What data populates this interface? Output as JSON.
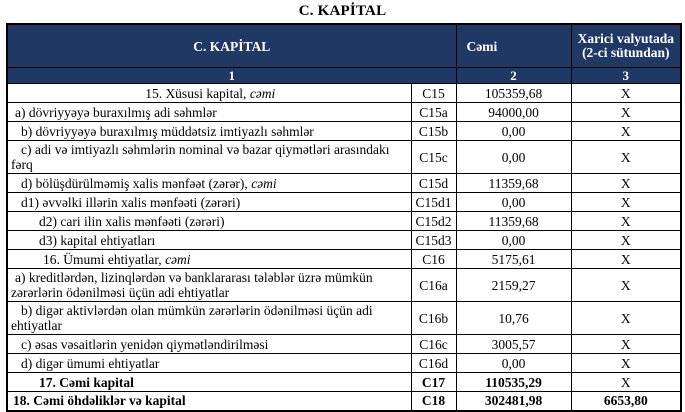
{
  "title": "C. KAPİTAL",
  "colors": {
    "header_bg": "#1f3864",
    "header_text": "#ffffff",
    "border": "#000000"
  },
  "table": {
    "header": {
      "section": "C. KAPİTAL",
      "total": "Cəmi",
      "foreign": "Xarici valyutada (2-ci sütundan)",
      "index": [
        "1",
        "2",
        "3"
      ]
    },
    "rows": [
      {
        "label": "15. Xüsusi kapital, ",
        "label_italic": "cəmi",
        "code": "C15",
        "total": "105359,68",
        "foreign": "X",
        "align": "center",
        "indent": 0,
        "bold": false,
        "foreign_bold": false
      },
      {
        "label": "a) dövriyyəyə buraxılmış adi səhmlər",
        "code": "C15a",
        "total": "94000,00",
        "foreign": "X",
        "indent": 1,
        "bold": false,
        "foreign_bold": false
      },
      {
        "label": "b) dövriyyəyə buraxılmış müddətsiz imtiyazlı səhmlər",
        "code": "C15b",
        "total": "0,00",
        "foreign": "X",
        "indent": 2,
        "bold": false,
        "foreign_bold": false
      },
      {
        "label": "c) adi və imtiyazlı səhmlərin nominal və bazar qiymətləri arasındakı fərq",
        "code": "C15c",
        "total": "0,00",
        "foreign": "X",
        "indent": 2,
        "bold": false,
        "foreign_bold": false
      },
      {
        "label": "d) bölüşdürülməmiş xalis mənfəət (zərər), ",
        "label_italic": "cəmi",
        "code": "C15d",
        "total": "11359,68",
        "foreign": "X",
        "indent": 2,
        "bold": false,
        "foreign_bold": false
      },
      {
        "label": "d1) əvvəlki illərin xalis mənfəəti (zərəri)",
        "code": "C15d1",
        "total": "0,00",
        "foreign": "X",
        "indent": 2,
        "bold": false,
        "foreign_bold": false
      },
      {
        "label": "d2) cari ilin xalis mənfəəti (zərəri)",
        "code": "C15d2",
        "total": "11359,68",
        "foreign": "X",
        "indent": 3,
        "bold": false,
        "foreign_bold": false
      },
      {
        "label": "d3) kapital ehtiyatları",
        "code": "C15d3",
        "total": "0,00",
        "foreign": "X",
        "indent": 3,
        "bold": false,
        "foreign_bold": false
      },
      {
        "label": "16. Ümumi ehtiyatlar, ",
        "label_italic": "cəmi",
        "code": "C16",
        "total": "5175,61",
        "foreign": "X",
        "indent": 4,
        "bold": false,
        "foreign_bold": false
      },
      {
        "label": "a) kreditlərdən, lizinqlərdən və banklararası  tələblər üzrə mümkün zərərlərin ödənilməsi üçün adi ehtiyatlar",
        "code": "C16a",
        "total": "2159,27",
        "foreign": "X",
        "indent": 1,
        "bold": false,
        "foreign_bold": false
      },
      {
        "label": "b) digər aktivlərdən olan mümkün zərərlərin ödənilməsi üçün adi ehtiyatlar",
        "code": "C16b",
        "total": "10,76",
        "foreign": "X",
        "indent": 2,
        "bold": false,
        "foreign_bold": false
      },
      {
        "label": "c) əsas vəsaitlərin yenidən qiymətləndirilməsi",
        "code": "C16c",
        "total": "3005,57",
        "foreign": "X",
        "indent": 2,
        "bold": false,
        "foreign_bold": false
      },
      {
        "label": "d) digər ümumi ehtiyatlar",
        "code": "C16d",
        "total": "0,00",
        "foreign": "X",
        "indent": 2,
        "bold": false,
        "foreign_bold": false
      },
      {
        "label": "17. Cəmi kapital",
        "code": "C17",
        "total": "110535,29",
        "foreign": "X",
        "indent": 3,
        "bold": true,
        "foreign_bold": false
      },
      {
        "label": "18. Cəmi öhdəliklər və kapital",
        "code": "C18",
        "total": "302481,98",
        "foreign": "6653,80",
        "indent": 0,
        "bold": true,
        "foreign_bold": true
      }
    ]
  }
}
